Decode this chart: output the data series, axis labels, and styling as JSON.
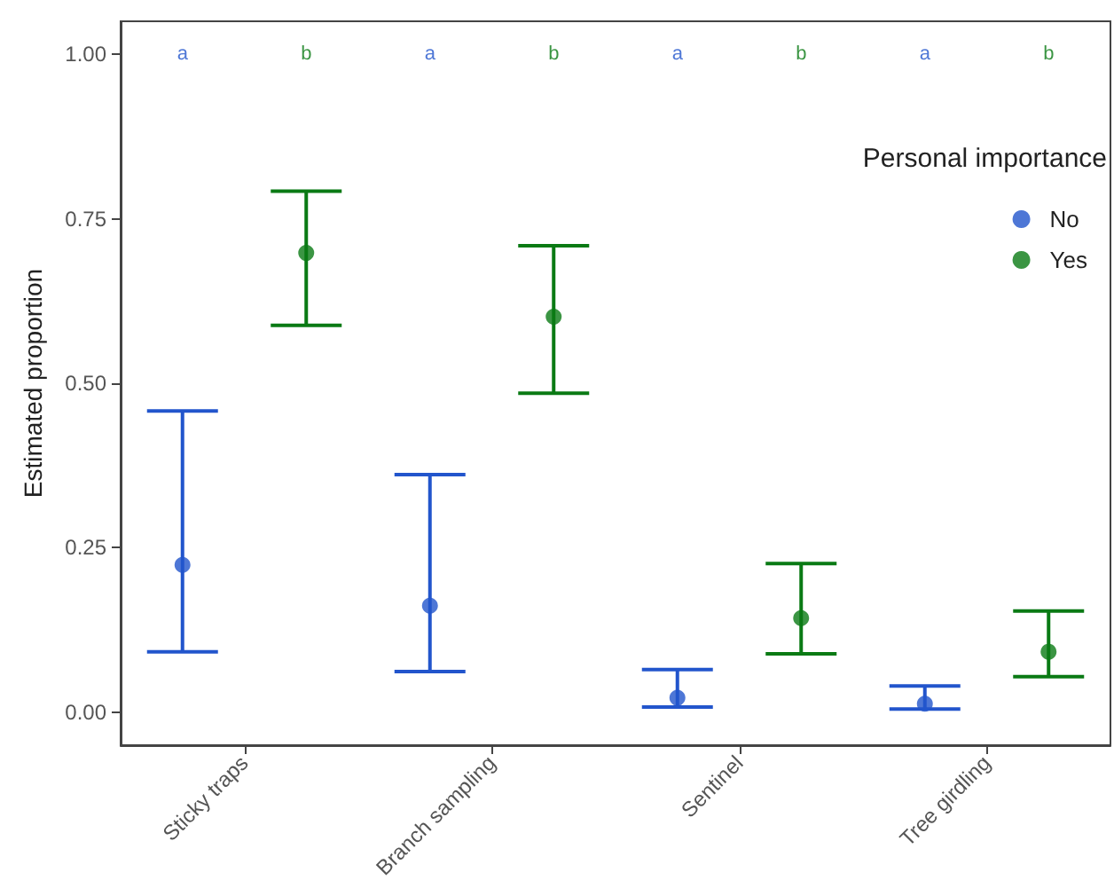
{
  "chart_data": {
    "type": "scatter",
    "ylabel": "Estimated proportion",
    "legend_title": "Personal importance",
    "legend": "top right",
    "grid": false,
    "marker": "circle",
    "categories": [
      "Sticky traps",
      "Branch sampling",
      "Sentinel",
      "Tree girdling"
    ],
    "ylim": [
      -0.05,
      1.05
    ],
    "yticks": [
      {
        "value": 0,
        "label": "0.00"
      },
      {
        "value": 0.25,
        "label": "0.25"
      },
      {
        "value": 0.5,
        "label": "0.50"
      },
      {
        "value": 0.75,
        "label": "0.75"
      },
      {
        "value": 1,
        "label": "1.00"
      }
    ],
    "series": [
      {
        "name": "No",
        "color": "#2255cc",
        "values": [
          0.224,
          0.162,
          0.022,
          0.013
        ],
        "errors": [
          [
            0.092,
            0.458
          ],
          [
            0.062,
            0.361
          ],
          [
            0.008,
            0.065
          ],
          [
            0.005,
            0.04
          ]
        ]
      },
      {
        "name": "Yes",
        "color": "#0a7a14",
        "values": [
          0.698,
          0.601,
          0.143,
          0.092
        ],
        "errors": [
          [
            0.588,
            0.792
          ],
          [
            0.485,
            0.709
          ],
          [
            0.089,
            0.226
          ],
          [
            0.054,
            0.154
          ]
        ]
      }
    ],
    "annotations": [
      "a",
      "b",
      "a",
      "b",
      "a",
      "b",
      "a",
      "b"
    ]
  }
}
